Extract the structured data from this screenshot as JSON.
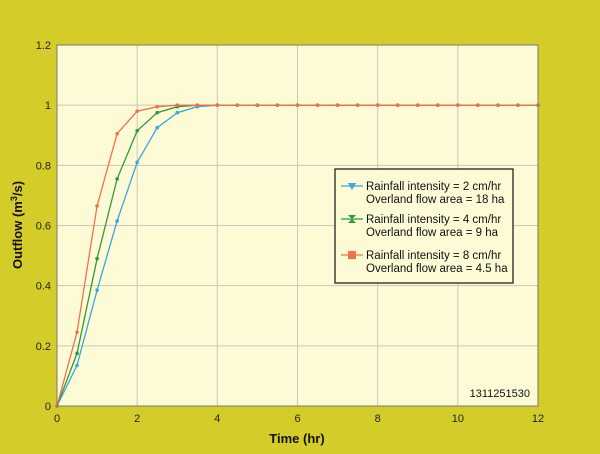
{
  "chart_data": {
    "type": "line",
    "title": "",
    "xlabel": "Time (hr)",
    "ylabel_main": "Outflow (m",
    "ylabel_sup": "3",
    "ylabel_tail": "/s)",
    "xlim": [
      0,
      12
    ],
    "ylim": [
      0,
      1.2
    ],
    "xticks": [
      "0",
      "2",
      "4",
      "6",
      "8",
      "10",
      "12"
    ],
    "yticks": [
      "0",
      "0.2",
      "0.4",
      "0.6",
      "0.8",
      "1",
      "1.2"
    ],
    "grid": true,
    "legend_position": "right",
    "figure_id": "1311251530",
    "series": [
      {
        "name_line1": "Rainfall intensity = 2 cm/hr",
        "name_line2": "Overland flow area = 18 ha",
        "color": "#3aa6dd",
        "marker": "triangle-down",
        "x": [
          0,
          0.5,
          1,
          1.5,
          2,
          2.5,
          3,
          3.5,
          4,
          4.5,
          5,
          5.5,
          6,
          6.5,
          7,
          7.5,
          8,
          8.5,
          9,
          9.5,
          10,
          10.5,
          11,
          11.5,
          12
        ],
        "y": [
          0,
          0.135,
          0.385,
          0.615,
          0.81,
          0.925,
          0.975,
          0.995,
          1,
          1,
          1,
          1,
          1,
          1,
          1,
          1,
          1,
          1,
          1,
          1,
          1,
          1,
          1,
          1,
          1
        ]
      },
      {
        "name_line1": "Rainfall intensity = 4 cm/hr",
        "name_line2": "Overland flow area = 9 ha",
        "color": "#2e9a3c",
        "marker": "hourglass",
        "x": [
          0,
          0.5,
          1,
          1.5,
          2,
          2.5,
          3,
          3.5,
          4,
          4.5,
          5,
          5.5,
          6,
          6.5,
          7,
          7.5,
          8,
          8.5,
          9,
          9.5,
          10,
          10.5,
          11,
          11.5,
          12
        ],
        "y": [
          0,
          0.175,
          0.49,
          0.755,
          0.915,
          0.975,
          0.995,
          1,
          1,
          1,
          1,
          1,
          1,
          1,
          1,
          1,
          1,
          1,
          1,
          1,
          1,
          1,
          1,
          1,
          1
        ]
      },
      {
        "name_line1": "Rainfall intensity = 8 cm/hr",
        "name_line2": "Overland flow area = 4.5 ha",
        "color": "#f2704a",
        "marker": "square",
        "x": [
          0,
          0.5,
          1,
          1.5,
          2,
          2.5,
          3,
          3.5,
          4,
          4.5,
          5,
          5.5,
          6,
          6.5,
          7,
          7.5,
          8,
          8.5,
          9,
          9.5,
          10,
          10.5,
          11,
          11.5,
          12
        ],
        "y": [
          0,
          0.245,
          0.665,
          0.905,
          0.98,
          0.995,
          1,
          1,
          1,
          1,
          1,
          1,
          1,
          1,
          1,
          1,
          1,
          1,
          1,
          1,
          1,
          1,
          1,
          1,
          1
        ]
      }
    ]
  }
}
